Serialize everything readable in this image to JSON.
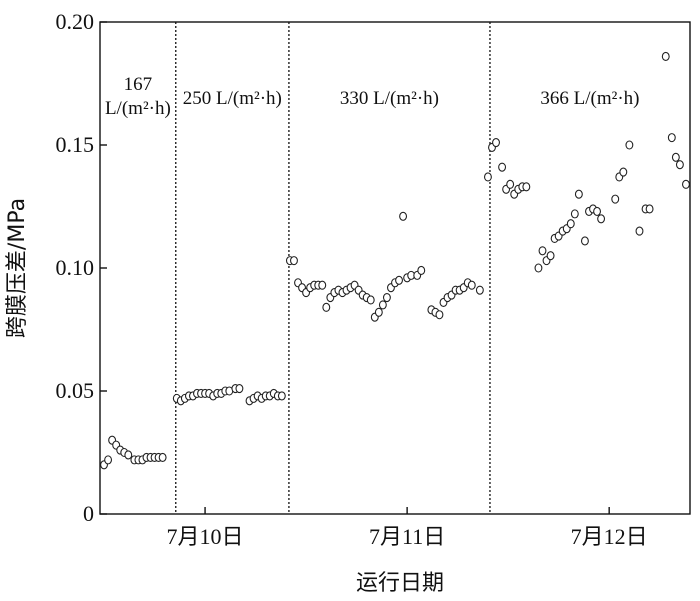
{
  "chart_data": {
    "type": "scatter",
    "ylabel": "跨膜压差/MPa",
    "xlabel": "运行日期",
    "ylim": [
      0,
      0.2
    ],
    "yticks": [
      "0",
      "0.05",
      "0.10",
      "0.15",
      "0.20"
    ],
    "ytick_values": [
      0,
      0.05,
      0.1,
      0.15,
      0.2
    ],
    "xlim": [
      9.48,
      12.4
    ],
    "xticks": [
      {
        "label": "7月10日",
        "value": 10.0
      },
      {
        "label": "7月11日",
        "value": 11.0
      },
      {
        "label": "7月12日",
        "value": 12.0
      }
    ],
    "grid": false,
    "marker": "open-circle",
    "regions": [
      {
        "label_lines": [
          "167",
          "L/(m²·h)"
        ],
        "x_start": 9.48,
        "x_end": 9.855
      },
      {
        "label_lines": [
          "250 L/(m²·h)"
        ],
        "x_start": 9.855,
        "x_end": 10.415
      },
      {
        "label_lines": [
          "330 L/(m²·h)"
        ],
        "x_start": 10.415,
        "x_end": 11.41
      },
      {
        "label_lines": [
          "366 L/(m²·h)"
        ],
        "x_start": 11.41,
        "x_end": 12.4
      }
    ],
    "boundaries": [
      9.855,
      10.415,
      11.41
    ],
    "points": [
      [
        9.5,
        0.02
      ],
      [
        9.52,
        0.022
      ],
      [
        9.54,
        0.03
      ],
      [
        9.56,
        0.028
      ],
      [
        9.58,
        0.026
      ],
      [
        9.6,
        0.025
      ],
      [
        9.62,
        0.024
      ],
      [
        9.65,
        0.022
      ],
      [
        9.67,
        0.022
      ],
      [
        9.69,
        0.022
      ],
      [
        9.71,
        0.023
      ],
      [
        9.73,
        0.023
      ],
      [
        9.75,
        0.023
      ],
      [
        9.77,
        0.023
      ],
      [
        9.79,
        0.023
      ],
      [
        9.86,
        0.047
      ],
      [
        9.88,
        0.046
      ],
      [
        9.9,
        0.047
      ],
      [
        9.92,
        0.048
      ],
      [
        9.94,
        0.048
      ],
      [
        9.96,
        0.049
      ],
      [
        9.98,
        0.049
      ],
      [
        10.0,
        0.049
      ],
      [
        10.02,
        0.049
      ],
      [
        10.04,
        0.048
      ],
      [
        10.06,
        0.049
      ],
      [
        10.08,
        0.049
      ],
      [
        10.1,
        0.05
      ],
      [
        10.12,
        0.05
      ],
      [
        10.15,
        0.051
      ],
      [
        10.17,
        0.051
      ],
      [
        10.22,
        0.046
      ],
      [
        10.24,
        0.047
      ],
      [
        10.26,
        0.048
      ],
      [
        10.28,
        0.047
      ],
      [
        10.3,
        0.048
      ],
      [
        10.32,
        0.048
      ],
      [
        10.34,
        0.049
      ],
      [
        10.36,
        0.048
      ],
      [
        10.38,
        0.048
      ],
      [
        10.42,
        0.103
      ],
      [
        10.44,
        0.103
      ],
      [
        10.46,
        0.094
      ],
      [
        10.48,
        0.092
      ],
      [
        10.5,
        0.09
      ],
      [
        10.52,
        0.092
      ],
      [
        10.54,
        0.093
      ],
      [
        10.56,
        0.093
      ],
      [
        10.58,
        0.093
      ],
      [
        10.6,
        0.084
      ],
      [
        10.62,
        0.088
      ],
      [
        10.64,
        0.09
      ],
      [
        10.66,
        0.091
      ],
      [
        10.68,
        0.09
      ],
      [
        10.7,
        0.091
      ],
      [
        10.72,
        0.092
      ],
      [
        10.74,
        0.093
      ],
      [
        10.76,
        0.091
      ],
      [
        10.78,
        0.089
      ],
      [
        10.8,
        0.088
      ],
      [
        10.82,
        0.087
      ],
      [
        10.84,
        0.08
      ],
      [
        10.86,
        0.082
      ],
      [
        10.88,
        0.085
      ],
      [
        10.9,
        0.088
      ],
      [
        10.92,
        0.092
      ],
      [
        10.94,
        0.094
      ],
      [
        10.96,
        0.095
      ],
      [
        10.98,
        0.121
      ],
      [
        11.0,
        0.096
      ],
      [
        11.02,
        0.097
      ],
      [
        11.05,
        0.097
      ],
      [
        11.07,
        0.099
      ],
      [
        11.12,
        0.083
      ],
      [
        11.14,
        0.082
      ],
      [
        11.16,
        0.081
      ],
      [
        11.18,
        0.086
      ],
      [
        11.2,
        0.088
      ],
      [
        11.22,
        0.089
      ],
      [
        11.24,
        0.091
      ],
      [
        11.26,
        0.091
      ],
      [
        11.28,
        0.092
      ],
      [
        11.3,
        0.094
      ],
      [
        11.32,
        0.093
      ],
      [
        11.36,
        0.091
      ],
      [
        11.4,
        0.137
      ],
      [
        11.42,
        0.149
      ],
      [
        11.44,
        0.151
      ],
      [
        11.47,
        0.141
      ],
      [
        11.49,
        0.132
      ],
      [
        11.51,
        0.134
      ],
      [
        11.53,
        0.13
      ],
      [
        11.55,
        0.132
      ],
      [
        11.57,
        0.133
      ],
      [
        11.59,
        0.133
      ],
      [
        11.65,
        0.1
      ],
      [
        11.67,
        0.107
      ],
      [
        11.69,
        0.103
      ],
      [
        11.71,
        0.105
      ],
      [
        11.73,
        0.112
      ],
      [
        11.75,
        0.113
      ],
      [
        11.77,
        0.115
      ],
      [
        11.79,
        0.116
      ],
      [
        11.81,
        0.118
      ],
      [
        11.83,
        0.122
      ],
      [
        11.85,
        0.13
      ],
      [
        11.88,
        0.111
      ],
      [
        11.9,
        0.123
      ],
      [
        11.92,
        0.124
      ],
      [
        11.94,
        0.123
      ],
      [
        11.96,
        0.12
      ],
      [
        12.03,
        0.128
      ],
      [
        12.05,
        0.137
      ],
      [
        12.07,
        0.139
      ],
      [
        12.1,
        0.15
      ],
      [
        12.15,
        0.115
      ],
      [
        12.18,
        0.124
      ],
      [
        12.2,
        0.124
      ],
      [
        12.28,
        0.186
      ],
      [
        12.31,
        0.153
      ],
      [
        12.33,
        0.145
      ],
      [
        12.35,
        0.142
      ],
      [
        12.38,
        0.134
      ]
    ]
  }
}
